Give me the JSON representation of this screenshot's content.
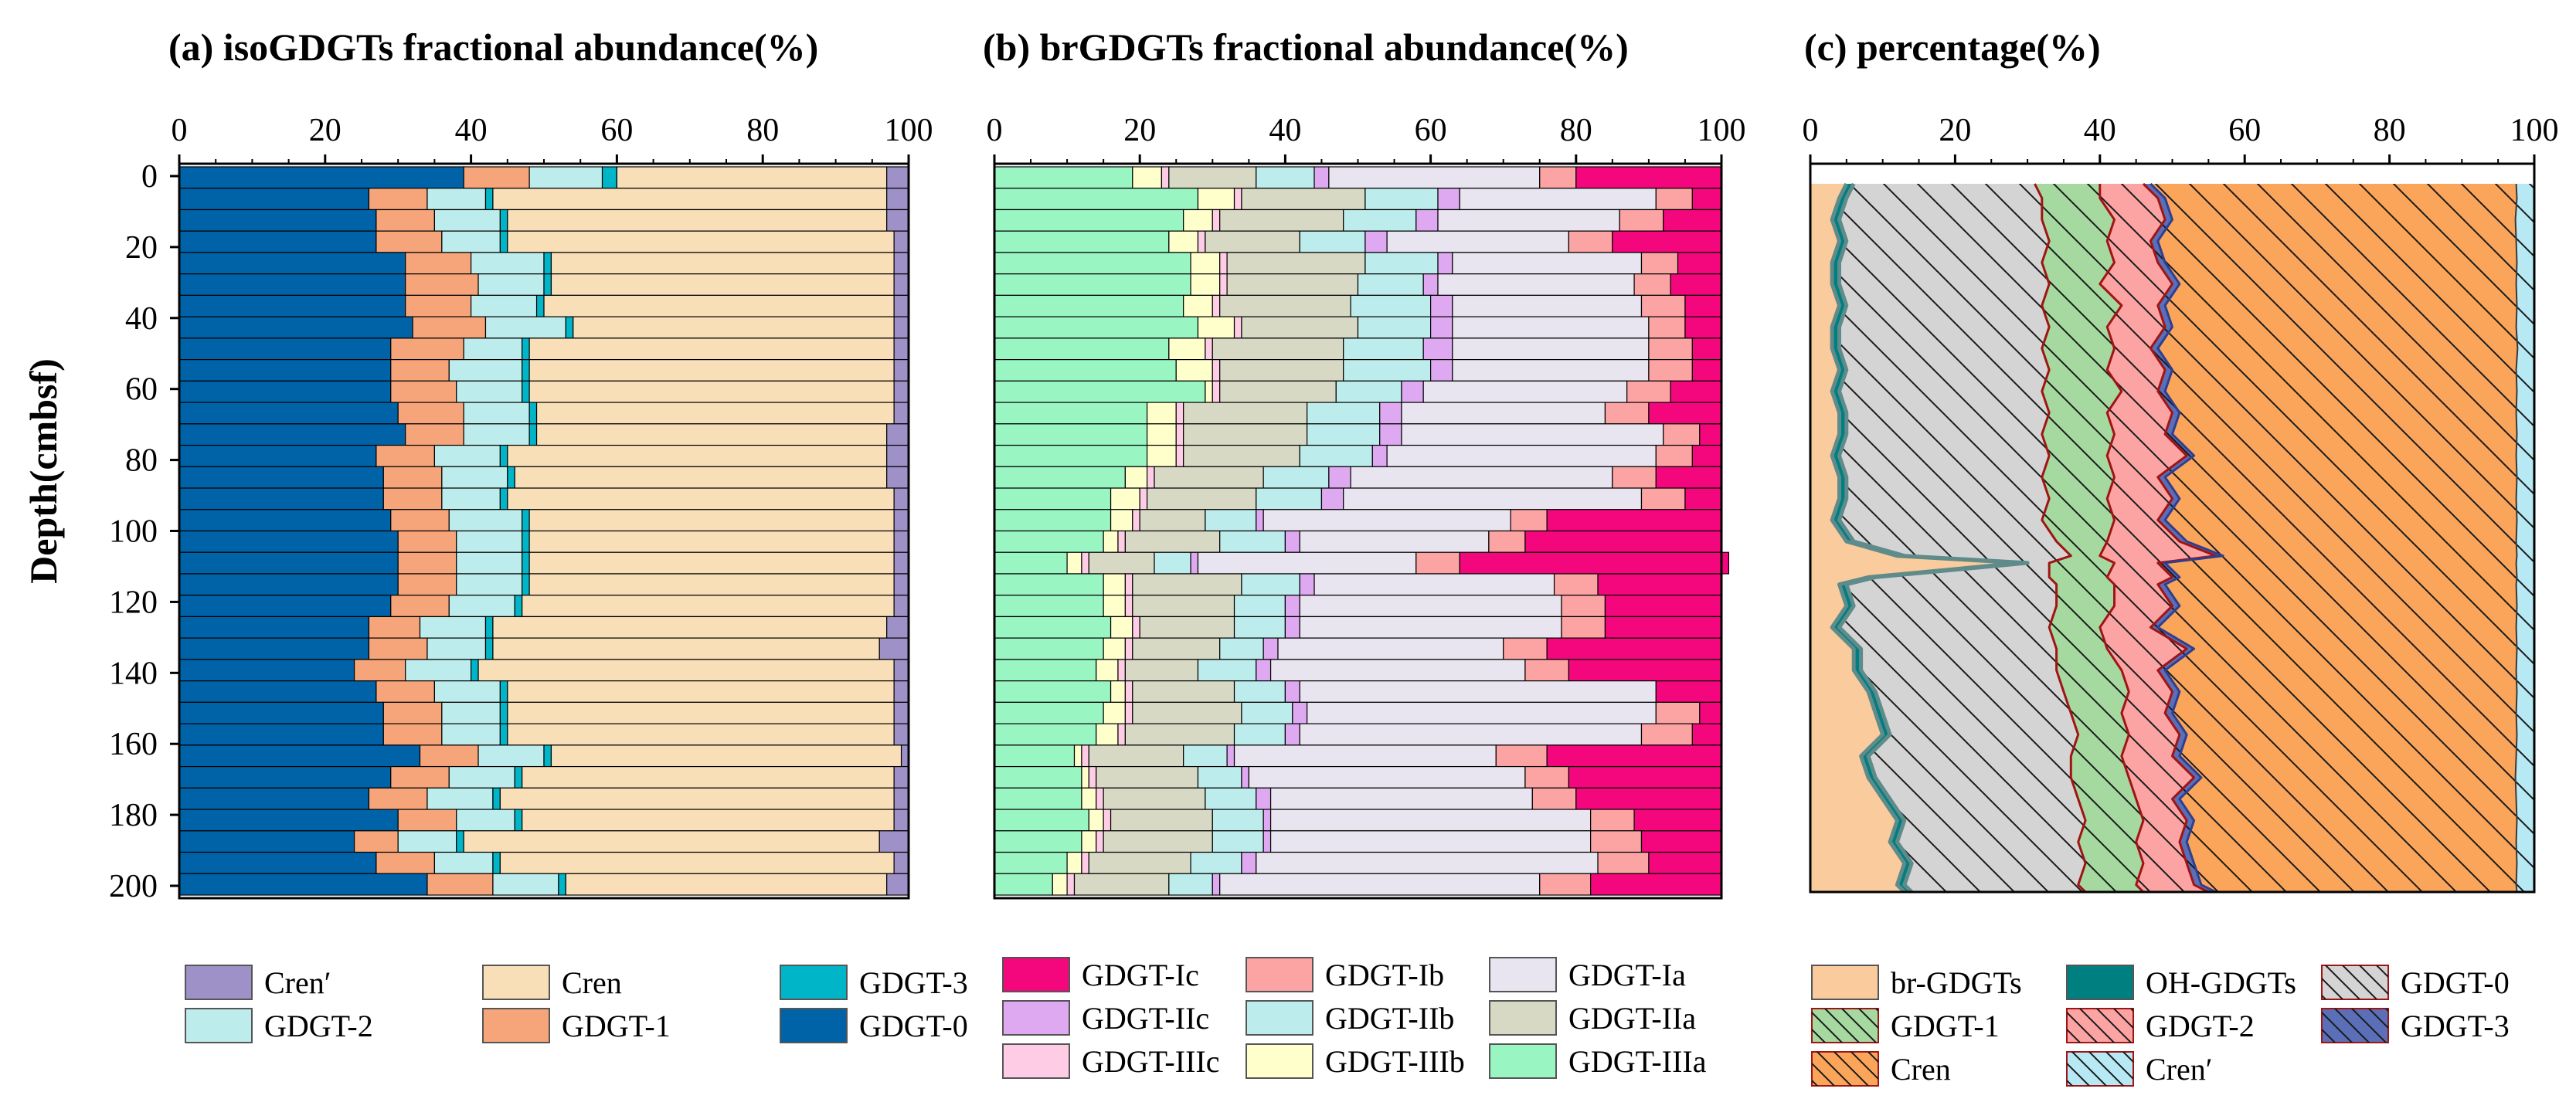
{
  "chart_data": [
    {
      "type": "bar",
      "stacked": "horizontal-100",
      "title": "(a) isoGDGTs fractional abundance(%)",
      "xlabel": "",
      "ylabel": "Depth(cmbsf)",
      "xlim": [
        0,
        100
      ],
      "ylim": [
        0,
        200
      ],
      "xticks": [
        "0",
        "20",
        "40",
        "60",
        "80",
        "100"
      ],
      "yticks": [
        "0",
        "20",
        "40",
        "60",
        "80",
        "100",
        "120",
        "140",
        "160",
        "180",
        "200"
      ],
      "depths": [
        0,
        6,
        12,
        18,
        24,
        30,
        36,
        42,
        48,
        54,
        60,
        66,
        72,
        78,
        84,
        90,
        96,
        102,
        108,
        114,
        120,
        126,
        132,
        138,
        144,
        150,
        156,
        162,
        168,
        174,
        180,
        186,
        192,
        198
      ],
      "series": [
        {
          "name": "GDGT-0",
          "color": "#0063A8",
          "values": [
            39,
            26,
            27,
            27,
            31,
            31,
            31,
            32,
            29,
            29,
            29,
            30,
            31,
            27,
            28,
            28,
            29,
            30,
            30,
            30,
            29,
            26,
            26,
            24,
            27,
            28,
            28,
            33,
            29,
            26,
            30,
            24,
            27,
            34
          ]
        },
        {
          "name": "GDGT-1",
          "color": "#F6A57A",
          "values": [
            9,
            8,
            8,
            9,
            9,
            10,
            9,
            10,
            10,
            8,
            9,
            9,
            8,
            8,
            8,
            8,
            8,
            8,
            8,
            8,
            8,
            7,
            8,
            7,
            8,
            8,
            8,
            8,
            8,
            8,
            8,
            6,
            8,
            9
          ]
        },
        {
          "name": "GDGT-2",
          "color": "#BDECEC",
          "values": [
            10,
            8,
            9,
            8,
            10,
            9,
            9,
            11,
            8,
            10,
            9,
            9,
            9,
            9,
            9,
            8,
            10,
            9,
            9,
            9,
            9,
            9,
            8,
            9,
            9,
            8,
            8,
            9,
            9,
            9,
            8,
            8,
            8,
            9
          ]
        },
        {
          "name": "GDGT-3",
          "color": "#00B5C8",
          "values": [
            2,
            1,
            1,
            1,
            1,
            1,
            1,
            1,
            1,
            1,
            1,
            1,
            1,
            1,
            1,
            1,
            1,
            1,
            1,
            1,
            1,
            1,
            1,
            1,
            1,
            1,
            1,
            1,
            1,
            1,
            1,
            1,
            1,
            1
          ]
        },
        {
          "name": "Cren",
          "color": "#F8DFB8",
          "values": [
            37,
            54,
            52,
            53,
            47,
            47,
            48,
            44,
            50,
            50,
            50,
            49,
            48,
            52,
            51,
            53,
            50,
            50,
            50,
            50,
            51,
            54,
            53,
            57,
            53,
            53,
            53,
            48,
            51,
            54,
            51,
            57,
            54,
            44
          ]
        },
        {
          "name": "Cren′",
          "color": "#9D91C7",
          "values": [
            3,
            3,
            3,
            2,
            2,
            2,
            2,
            2,
            2,
            2,
            2,
            2,
            3,
            3,
            3,
            2,
            2,
            2,
            2,
            2,
            2,
            3,
            4,
            2,
            2,
            2,
            2,
            1,
            2,
            2,
            2,
            4,
            2,
            3
          ]
        }
      ],
      "legend": {
        "position": "bottom",
        "entries": [
          "Cren′",
          "Cren",
          "GDGT-3",
          "GDGT-2",
          "GDGT-1",
          "GDGT-0"
        ]
      }
    },
    {
      "type": "bar",
      "stacked": "horizontal-100",
      "title": "(b) brGDGTs fractional abundance(%)",
      "xlim": [
        0,
        100
      ],
      "ylim": [
        0,
        200
      ],
      "xticks": [
        "0",
        "20",
        "40",
        "60",
        "80",
        "100"
      ],
      "depths": [
        0,
        6,
        12,
        18,
        24,
        30,
        36,
        42,
        48,
        54,
        60,
        66,
        72,
        78,
        84,
        90,
        96,
        102,
        108,
        114,
        120,
        126,
        132,
        138,
        144,
        150,
        156,
        162,
        168,
        174,
        180,
        186,
        192,
        198
      ],
      "series": [
        {
          "name": "GDGT-IIIa",
          "color": "#99F5C2",
          "values": [
            19,
            28,
            26,
            24,
            27,
            27,
            26,
            28,
            24,
            25,
            29,
            21,
            21,
            21,
            18,
            16,
            16,
            15,
            10,
            15,
            15,
            16,
            15,
            14,
            16,
            15,
            14,
            11,
            12,
            12,
            13,
            12,
            10,
            8
          ]
        },
        {
          "name": "GDGT-IIIb",
          "color": "#FFFFCC",
          "values": [
            4,
            5,
            4,
            4,
            4,
            4,
            4,
            5,
            5,
            5,
            1,
            4,
            4,
            4,
            3,
            4,
            3,
            2,
            2,
            3,
            3,
            3,
            3,
            3,
            2,
            3,
            3,
            1,
            1,
            2,
            2,
            2,
            2,
            2
          ]
        },
        {
          "name": "GDGT-IIIc",
          "color": "#FFCCE6",
          "values": [
            1,
            1,
            1,
            1,
            1,
            1,
            1,
            1,
            1,
            1,
            1,
            1,
            1,
            1,
            1,
            1,
            1,
            1,
            1,
            1,
            1,
            1,
            1,
            1,
            1,
            1,
            1,
            1,
            1,
            1,
            1,
            1,
            1,
            1
          ]
        },
        {
          "name": "GDGT-IIa",
          "color": "#D8D9C4",
          "values": [
            12,
            17,
            17,
            13,
            19,
            18,
            18,
            16,
            18,
            17,
            16,
            17,
            17,
            16,
            15,
            15,
            9,
            13,
            9,
            15,
            14,
            13,
            12,
            10,
            14,
            15,
            15,
            13,
            14,
            14,
            14,
            15,
            14,
            13
          ]
        },
        {
          "name": "GDGT-IIb",
          "color": "#BDECEC",
          "values": [
            8,
            10,
            10,
            9,
            10,
            9,
            11,
            10,
            11,
            12,
            9,
            10,
            10,
            10,
            9,
            9,
            7,
            9,
            5,
            8,
            7,
            7,
            6,
            8,
            7,
            7,
            7,
            6,
            6,
            7,
            7,
            7,
            7,
            6
          ]
        },
        {
          "name": "GDGT-IIc",
          "color": "#DEA9F0",
          "values": [
            2,
            3,
            3,
            3,
            2,
            2,
            3,
            3,
            4,
            3,
            3,
            3,
            3,
            2,
            3,
            3,
            1,
            2,
            1,
            2,
            2,
            2,
            2,
            2,
            2,
            2,
            2,
            1,
            1,
            2,
            1,
            1,
            2,
            1
          ]
        },
        {
          "name": "GDGT-Ia",
          "color": "#E8E4F0",
          "values": [
            29,
            27,
            25,
            25,
            26,
            27,
            26,
            27,
            27,
            27,
            28,
            28,
            36,
            37,
            36,
            41,
            34,
            26,
            30,
            33,
            36,
            36,
            31,
            35,
            49,
            48,
            47,
            36,
            38,
            36,
            44,
            44,
            47,
            44
          ]
        },
        {
          "name": "GDGT-Ib",
          "color": "#FCA3A3",
          "values": [
            5,
            5,
            6,
            6,
            5,
            5,
            6,
            5,
            6,
            6,
            6,
            6,
            5,
            5,
            6,
            6,
            5,
            5,
            6,
            6,
            6,
            6,
            6,
            6,
            0,
            6,
            7,
            7,
            6,
            6,
            6,
            7,
            7,
            7
          ]
        },
        {
          "name": "GDGT-Ic",
          "color": "#F4077D",
          "values": [
            20,
            4,
            8,
            15,
            6,
            7,
            5,
            5,
            4,
            4,
            7,
            10,
            3,
            4,
            9,
            5,
            24,
            27,
            37,
            17,
            16,
            16,
            24,
            21,
            9,
            3,
            4,
            24,
            21,
            20,
            12,
            11,
            10,
            18
          ]
        }
      ],
      "legend": {
        "position": "bottom",
        "entries": [
          "GDGT-Ic",
          "GDGT-Ib",
          "GDGT-Ia",
          "GDGT-IIc",
          "GDGT-IIb",
          "GDGT-IIa",
          "GDGT-IIIc",
          "GDGT-IIIb",
          "GDGT-IIIa"
        ]
      }
    },
    {
      "type": "area",
      "stacked": "cumulative-horizontal",
      "title": "(c) percentage(%)",
      "xlim": [
        0,
        100
      ],
      "ylim": [
        0,
        200
      ],
      "xticks": [
        "0",
        "20",
        "40",
        "60",
        "80",
        "100"
      ],
      "depths": [
        2,
        6,
        12,
        18,
        24,
        30,
        36,
        42,
        48,
        54,
        60,
        66,
        72,
        78,
        84,
        90,
        96,
        102,
        106,
        108,
        112,
        114,
        120,
        126,
        132,
        138,
        144,
        150,
        156,
        162,
        168,
        174,
        180,
        186,
        192,
        198,
        200
      ],
      "boundaries": [
        {
          "name": "br-GDGTs",
          "values": [
            5,
            4,
            3,
            4,
            3,
            3,
            4,
            3,
            3,
            4,
            3,
            4,
            4,
            3,
            4,
            4,
            3,
            5,
            12,
            29,
            8,
            4,
            5,
            3,
            6,
            6,
            8,
            9,
            10,
            7,
            8,
            10,
            12,
            11,
            13,
            12,
            13
          ]
        },
        {
          "name": "OH-GDGTs",
          "values": [
            6,
            5,
            4,
            5,
            4,
            4,
            5,
            4,
            4,
            5,
            4,
            5,
            5,
            4,
            5,
            5,
            4,
            6,
            13,
            30,
            9,
            5,
            6,
            4,
            7,
            7,
            9,
            10,
            11,
            8,
            9,
            11,
            13,
            12,
            14,
            13,
            14
          ]
        },
        {
          "name": "GDGT-0",
          "values": [
            31,
            32,
            32,
            33,
            32,
            33,
            32,
            33,
            32,
            33,
            32,
            33,
            32,
            33,
            32,
            33,
            32,
            34,
            36,
            33,
            33,
            34,
            34,
            33,
            34,
            34,
            35,
            36,
            37,
            36,
            36,
            37,
            38,
            37,
            38,
            37,
            38
          ]
        },
        {
          "name": "GDGT-1",
          "values": [
            40,
            40,
            42,
            41,
            42,
            40,
            43,
            41,
            42,
            41,
            43,
            41,
            42,
            41,
            42,
            41,
            42,
            41,
            40,
            42,
            41,
            42,
            42,
            40,
            41,
            43,
            44,
            43,
            44,
            43,
            44,
            45,
            46,
            45,
            46,
            45,
            46
          ]
        },
        {
          "name": "GDGT-2",
          "values": [
            46,
            48,
            49,
            47,
            48,
            50,
            48,
            49,
            47,
            49,
            48,
            50,
            49,
            52,
            48,
            50,
            48,
            51,
            56,
            48,
            50,
            48,
            50,
            47,
            52,
            48,
            50,
            49,
            51,
            50,
            53,
            50,
            52,
            51,
            52,
            53,
            55
          ]
        },
        {
          "name": "GDGT-3",
          "values": [
            47,
            49,
            50,
            48,
            49,
            51,
            49,
            50,
            48,
            50,
            49,
            51,
            50,
            53,
            49,
            51,
            49,
            52,
            57,
            49,
            51,
            49,
            51,
            48,
            53,
            49,
            51,
            50,
            52,
            51,
            54,
            51,
            53,
            52,
            53,
            54,
            56
          ]
        },
        {
          "name": "Cren",
          "values": [
            97.5,
            97.6,
            97.4,
            97.5,
            97.6,
            97.5,
            97.6,
            97.5,
            97.7,
            97.5,
            97.6,
            97.5,
            97.6,
            97.5,
            97.6,
            97.5,
            97.6,
            97.5,
            97.6,
            97.5,
            97.6,
            97.5,
            97.6,
            97.5,
            97.6,
            97.5,
            97.6,
            97.5,
            97.6,
            97.5,
            97.4,
            97.5,
            97.6,
            97.5,
            97.6,
            97.5,
            97.6
          ]
        },
        {
          "name": "Cren′",
          "values": [
            100,
            100,
            100,
            100,
            100,
            100,
            100,
            100,
            100,
            100,
            100,
            100,
            100,
            100,
            100,
            100,
            100,
            100,
            100,
            100,
            100,
            100,
            100,
            100,
            100,
            100,
            100,
            100,
            100,
            100,
            100,
            100,
            100,
            100,
            100,
            100,
            100
          ]
        }
      ],
      "legend": {
        "position": "bottom",
        "entries": [
          "br-GDGTs",
          "GDGT-1",
          "Cren",
          "OH-GDGTs",
          "GDGT-2",
          "Cren′",
          "GDGT-0",
          "GDGT-3"
        ]
      }
    }
  ],
  "styles": {
    "c_br": "#FACB9C",
    "c_oh": "#007F80",
    "c_gdgt0": "#D4D4D4",
    "c_gdgt1": "#A5D9A0",
    "c_gdgt2": "#FCA3A3",
    "c_gdgt3": "#5A6FB8",
    "c_cren": "#FBA55B",
    "c_crenp": "#B7E9F5",
    "outline_red": "#A01414",
    "outline_oh": "#5F8B8B"
  }
}
